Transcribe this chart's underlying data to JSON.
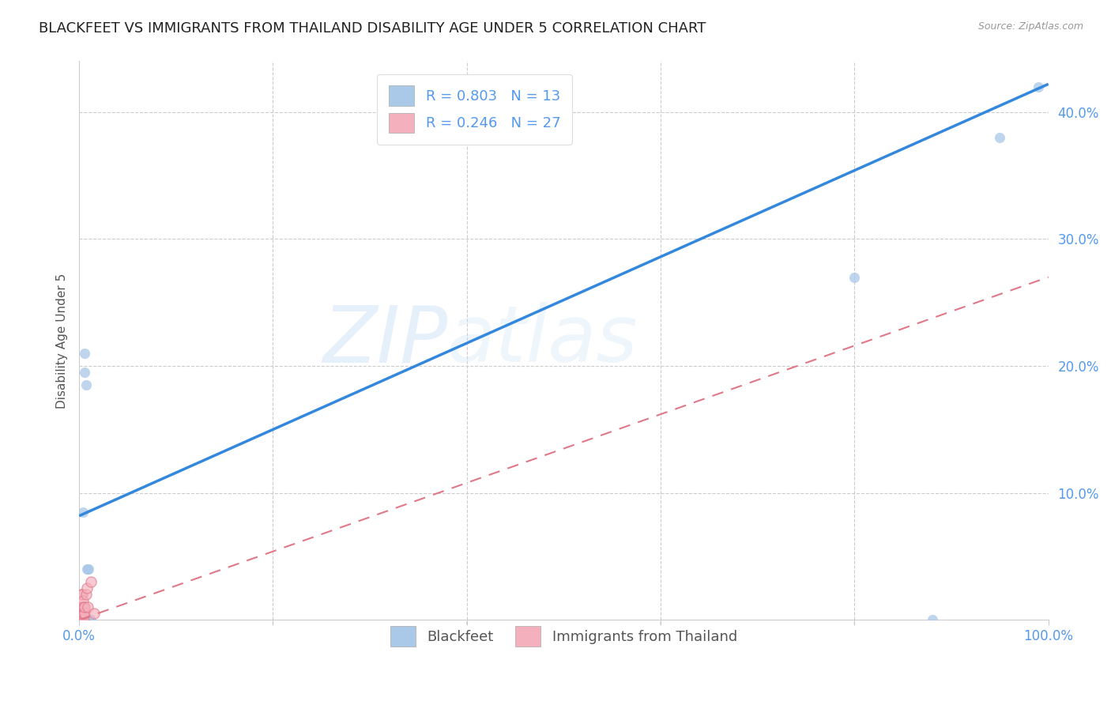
{
  "title": "BLACKFEET VS IMMIGRANTS FROM THAILAND DISABILITY AGE UNDER 5 CORRELATION CHART",
  "source": "Source: ZipAtlas.com",
  "ylabel": "Disability Age Under 5",
  "xlim": [
    0,
    1.0
  ],
  "ylim": [
    0,
    0.44
  ],
  "xticks": [
    0.0,
    0.2,
    0.4,
    0.6,
    0.8,
    1.0
  ],
  "yticks": [
    0.0,
    0.1,
    0.2,
    0.3,
    0.4
  ],
  "ytick_labels": [
    "",
    "10.0%",
    "20.0%",
    "30.0%",
    "40.0%"
  ],
  "xtick_labels": [
    "0.0%",
    "",
    "",
    "",
    "",
    "100.0%"
  ],
  "blackfeet_R": 0.803,
  "blackfeet_N": 13,
  "thailand_R": 0.246,
  "thailand_N": 27,
  "blackfeet_color": "#aac8e8",
  "blackfeet_line_color": "#3388dd",
  "thailand_color": "#f5b0be",
  "thailand_line_color": "#e07888",
  "blackfeet_scatter_x": [
    0.004,
    0.006,
    0.006,
    0.007,
    0.008,
    0.009,
    0.01,
    0.011,
    0.012,
    0.8,
    0.88,
    0.95,
    0.99
  ],
  "blackfeet_scatter_y": [
    0.085,
    0.195,
    0.21,
    0.185,
    0.04,
    0.04,
    0.04,
    0.0,
    0.0,
    0.27,
    0.0,
    0.38,
    0.42
  ],
  "thailand_scatter_x": [
    0.001,
    0.001,
    0.001,
    0.001,
    0.001,
    0.002,
    0.002,
    0.002,
    0.002,
    0.002,
    0.003,
    0.003,
    0.003,
    0.003,
    0.004,
    0.004,
    0.004,
    0.005,
    0.005,
    0.005,
    0.006,
    0.006,
    0.007,
    0.008,
    0.009,
    0.012,
    0.015
  ],
  "thailand_scatter_y": [
    0.0,
    0.0,
    0.0,
    0.005,
    0.01,
    0.0,
    0.0,
    0.005,
    0.01,
    0.02,
    0.0,
    0.005,
    0.01,
    0.02,
    0.0,
    0.005,
    0.015,
    0.0,
    0.005,
    0.01,
    0.005,
    0.01,
    0.02,
    0.025,
    0.01,
    0.03,
    0.005
  ],
  "blue_line_x0": 0.0,
  "blue_line_y0": 0.082,
  "blue_line_x1": 1.0,
  "blue_line_y1": 0.422,
  "pink_line_x0": 0.0,
  "pink_line_y0": 0.0,
  "pink_line_x1": 1.0,
  "pink_line_y1": 0.27,
  "watermark_zip": "ZIP",
  "watermark_atlas": "atlas",
  "legend_items": [
    "Blackfeet",
    "Immigrants from Thailand"
  ],
  "background_color": "#ffffff",
  "grid_color": "#cccccc",
  "axis_color": "#5599ee",
  "title_fontsize": 13,
  "label_fontsize": 11
}
